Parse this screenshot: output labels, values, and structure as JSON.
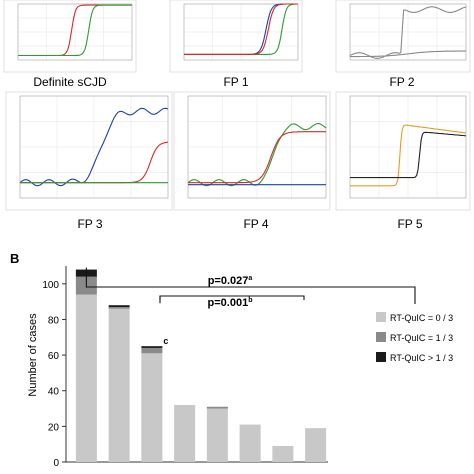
{
  "panels": [
    {
      "label": "Definite sCJD"
    },
    {
      "label": "FP 1"
    },
    {
      "label": "FP 2"
    },
    {
      "label": "FP 3"
    },
    {
      "label": "FP 4"
    },
    {
      "label": "FP 5"
    }
  ],
  "panel_b_label": "B",
  "colors": {
    "rt0": "#c8c8c8",
    "rt1": "#8a8a8a",
    "rt2": "#1a1a1a",
    "red": "#d42a2a",
    "green": "#2e9b2e",
    "blue": "#1f3fb0",
    "orange": "#e79b23",
    "black": "#222222",
    "gray": "#888888"
  },
  "chart_data": {
    "type": "bar",
    "stacked": true,
    "ylabel": "Number of cases",
    "ylim": [
      0,
      110
    ],
    "yticks": [
      0,
      20,
      40,
      60,
      80,
      100
    ],
    "categories": [
      "",
      "",
      "",
      "",
      "",
      "",
      "",
      ""
    ],
    "series": [
      {
        "name": "RT-QuIC = 0 / 3",
        "values": [
          94,
          86,
          61,
          32,
          30,
          21,
          9,
          19
        ]
      },
      {
        "name": "RT-QuIC = 1 / 3",
        "values": [
          10,
          1,
          3,
          0,
          1,
          0,
          0,
          0
        ]
      },
      {
        "name": "RT-QuIC > 1 / 3",
        "values": [
          4,
          1,
          1,
          0,
          0,
          0,
          0,
          0
        ]
      }
    ],
    "annotations": [
      {
        "text": "p=0.027",
        "sup": "a"
      },
      {
        "text": "p=0.001",
        "sup": "b"
      },
      {
        "text": "c"
      }
    ],
    "legend_position": "right"
  }
}
